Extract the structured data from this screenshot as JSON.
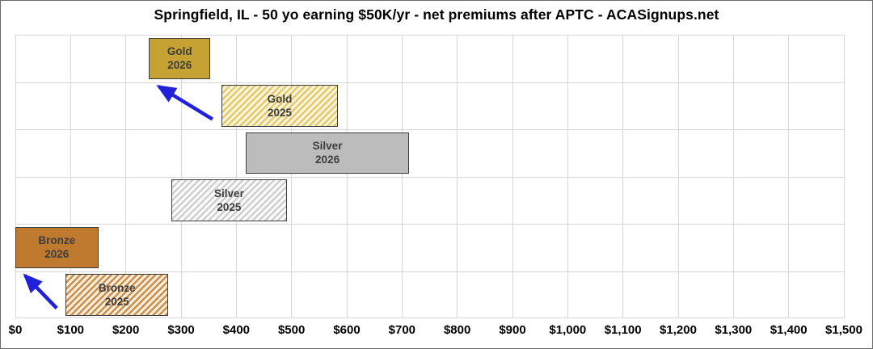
{
  "title": "Springfield, IL - 50 yo earning $50K/yr - net premiums after APTC - ACASignups.net",
  "chart_data": {
    "type": "bar",
    "subtype": "horizontal-floating-range-bars",
    "title": "Springfield, IL - 50 yo earning $50K/yr - net premiums after APTC - ACASignups.net",
    "xlabel": "",
    "ylabel": "",
    "xlim": [
      0,
      1500
    ],
    "grid": true,
    "legend": "none",
    "x_ticks": [
      {
        "value": 0,
        "label": "$0"
      },
      {
        "value": 100,
        "label": "$100"
      },
      {
        "value": 200,
        "label": "$200"
      },
      {
        "value": 300,
        "label": "$300"
      },
      {
        "value": 400,
        "label": "$400"
      },
      {
        "value": 500,
        "label": "$500"
      },
      {
        "value": 600,
        "label": "$600"
      },
      {
        "value": 700,
        "label": "$700"
      },
      {
        "value": 800,
        "label": "$800"
      },
      {
        "value": 900,
        "label": "$900"
      },
      {
        "value": 1000,
        "label": "$1,000"
      },
      {
        "value": 1100,
        "label": "$1,100"
      },
      {
        "value": 1200,
        "label": "$1,200"
      },
      {
        "value": 1300,
        "label": "$1,300"
      },
      {
        "value": 1400,
        "label": "$1,400"
      },
      {
        "value": 1500,
        "label": "$1,500"
      }
    ],
    "series": [
      {
        "name": "Gold 2026",
        "line1": "Gold",
        "line2": "2026",
        "range": [
          242,
          353
        ],
        "fill": "solid",
        "tier": "gold"
      },
      {
        "name": "Gold 2025",
        "line1": "Gold",
        "line2": "2025",
        "range": [
          373,
          584
        ],
        "fill": "hatch",
        "tier": "gold"
      },
      {
        "name": "Silver 2026",
        "line1": "Silver",
        "line2": "2026",
        "range": [
          417,
          713
        ],
        "fill": "solid",
        "tier": "silver"
      },
      {
        "name": "Silver 2025",
        "line1": "Silver",
        "line2": "2025",
        "range": [
          282,
          492
        ],
        "fill": "hatch",
        "tier": "silver"
      },
      {
        "name": "Bronze 2026",
        "line1": "Bronze",
        "line2": "2026",
        "range": [
          0,
          150
        ],
        "fill": "solid",
        "tier": "bronze"
      },
      {
        "name": "Bronze 2025",
        "line1": "Bronze",
        "line2": "2025",
        "range": [
          91,
          277
        ],
        "fill": "hatch",
        "tier": "bronze"
      }
    ],
    "annotations": [
      {
        "type": "arrow",
        "from_series": 1,
        "to_series": 0,
        "meaning": "Gold net premium drops from 2025 to 2026"
      },
      {
        "type": "arrow",
        "from_series": 5,
        "to_series": 4,
        "meaning": "Bronze net premium drops from 2025 to 2026"
      }
    ],
    "colors": {
      "gold_solid": "#C5A233",
      "gold_hatch_stripe": "#E3C96B",
      "gold_hatch_bg": "#FBF5DD",
      "silver_solid": "#BCBCBC",
      "silver_hatch_stripe": "#CFCFCF",
      "silver_hatch_bg": "#FDFDFD",
      "bronze_solid": "#C07A2E",
      "bronze_hatch_stripe": "#CE8F4C",
      "bronze_hatch_bg": "#FAEEDC",
      "bar_border": "#3C3C3C",
      "bar_text": "#3D3D3D",
      "arrow": "#2121DC",
      "grid": "#D7D7D7"
    }
  }
}
